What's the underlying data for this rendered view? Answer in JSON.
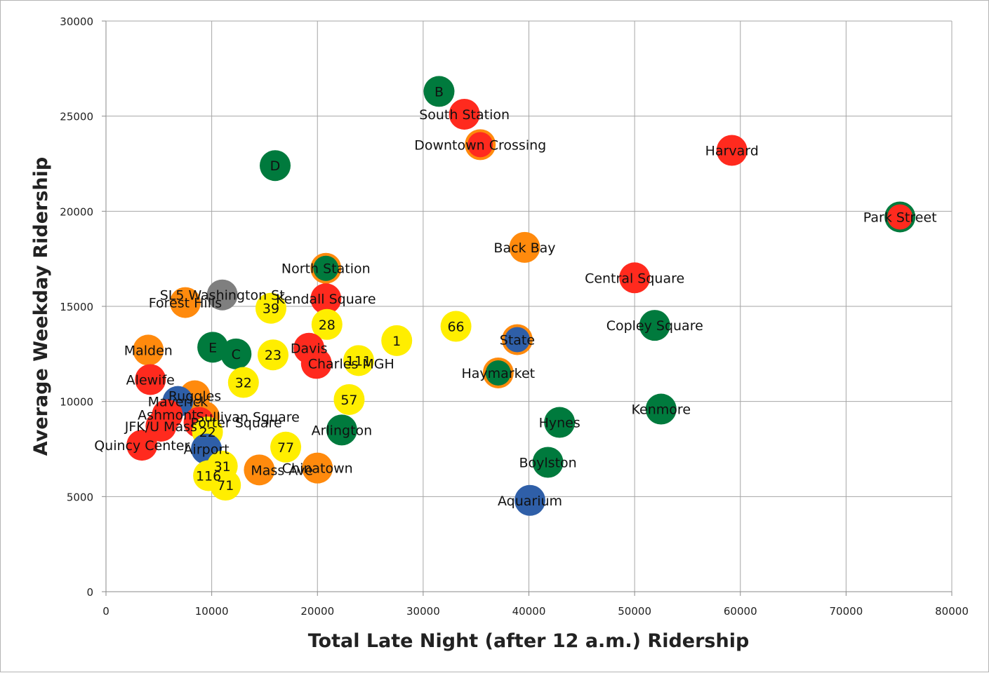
{
  "chart_data": {
    "type": "scatter",
    "xlabel": "Total Late Night (after 12 a.m.) Ridership",
    "ylabel": "Average Weekday Ridership",
    "xlim": [
      0,
      80000
    ],
    "ylim": [
      0,
      30000
    ],
    "xticks": [
      "0",
      "10000",
      "20000",
      "30000",
      "40000",
      "50000",
      "60000",
      "70000",
      "80000"
    ],
    "yticks": [
      "0",
      "5000",
      "10000",
      "15000",
      "20000",
      "25000",
      "30000"
    ],
    "grid": true,
    "colors": {
      "red": "#ff2a1e",
      "orange": "#ff8a0d",
      "green": "#007a3d",
      "blue": "#2f5fa8",
      "yellow": "#ffee00",
      "gray": "#7f7f7f"
    },
    "points": [
      {
        "label": "B",
        "x": 31500,
        "y": 26300,
        "color": "green",
        "align": "center"
      },
      {
        "label": "South Station",
        "x": 33900,
        "y": 25100,
        "color": "red",
        "align": "center"
      },
      {
        "label": "Downtown Crossing",
        "x": 35400,
        "y": 23500,
        "color": "red",
        "ring": "orange",
        "align": "center"
      },
      {
        "label": "Harvard",
        "x": 59200,
        "y": 23200,
        "color": "red",
        "align": "center"
      },
      {
        "label": "D",
        "x": 16000,
        "y": 22400,
        "color": "green",
        "align": "center"
      },
      {
        "label": "Park Street",
        "x": 75100,
        "y": 19700,
        "color": "red",
        "ring": "green",
        "align": "center"
      },
      {
        "label": "Back Bay",
        "x": 39600,
        "y": 18100,
        "color": "orange",
        "align": "center"
      },
      {
        "label": "North Station",
        "x": 20800,
        "y": 17000,
        "color": "green",
        "ring": "orange",
        "align": "center"
      },
      {
        "label": "Central Square",
        "x": 50000,
        "y": 16500,
        "color": "red",
        "align": "center"
      },
      {
        "label": "SL5 Washington St",
        "x": 11000,
        "y": 15600,
        "color": "gray",
        "align": "center"
      },
      {
        "label": "Kendall Square",
        "x": 20800,
        "y": 15400,
        "color": "red",
        "align": "center"
      },
      {
        "label": "Forest Hills",
        "x": 7500,
        "y": 15200,
        "color": "orange",
        "align": "center"
      },
      {
        "label": "39",
        "x": 15600,
        "y": 14900,
        "color": "yellow",
        "align": "center"
      },
      {
        "label": "28",
        "x": 20900,
        "y": 14050,
        "color": "yellow",
        "align": "center"
      },
      {
        "label": "66",
        "x": 33100,
        "y": 13950,
        "color": "yellow",
        "align": "center"
      },
      {
        "label": "Copley Square",
        "x": 51900,
        "y": 14000,
        "color": "green",
        "align": "center"
      },
      {
        "label": "1",
        "x": 27500,
        "y": 13200,
        "color": "yellow",
        "align": "center"
      },
      {
        "label": "State",
        "x": 38900,
        "y": 13250,
        "color": "blue",
        "ring": "orange",
        "align": "center"
      },
      {
        "label": "Malden",
        "x": 4000,
        "y": 12700,
        "color": "orange",
        "align": "center"
      },
      {
        "label": "E",
        "x": 10100,
        "y": 12850,
        "color": "green",
        "align": "center"
      },
      {
        "label": "C",
        "x": 12300,
        "y": 12500,
        "color": "green",
        "align": "center"
      },
      {
        "label": "23",
        "x": 15800,
        "y": 12450,
        "color": "yellow",
        "align": "center"
      },
      {
        "label": "Davis",
        "x": 19200,
        "y": 12800,
        "color": "red",
        "align": "center"
      },
      {
        "label": "111",
        "x": 23900,
        "y": 12150,
        "color": "yellow",
        "align": "center"
      },
      {
        "label": "Charles MGH",
        "x": 19900,
        "y": 12000,
        "color": "red",
        "align": "left"
      },
      {
        "label": "Haymarket",
        "x": 37100,
        "y": 11500,
        "color": "green",
        "ring": "orange",
        "align": "center"
      },
      {
        "label": "Alewife",
        "x": 4200,
        "y": 11150,
        "color": "red",
        "align": "center"
      },
      {
        "label": "Ruggles",
        "x": 8400,
        "y": 10300,
        "color": "orange",
        "align": "center"
      },
      {
        "label": "32",
        "x": 13000,
        "y": 11000,
        "color": "yellow",
        "align": "center"
      },
      {
        "label": "Maverick",
        "x": 6800,
        "y": 10000,
        "color": "blue",
        "align": "center"
      },
      {
        "label": "57",
        "x": 23000,
        "y": 10100,
        "color": "yellow",
        "align": "center"
      },
      {
        "label": "Kenmore",
        "x": 52500,
        "y": 9600,
        "color": "green",
        "align": "center"
      },
      {
        "label": "Sullivan Square",
        "x": 9300,
        "y": 9200,
        "color": "orange",
        "align": "left"
      },
      {
        "label": "Ashmont",
        "x": 5800,
        "y": 9300,
        "color": "red",
        "align": "center"
      },
      {
        "label": "Hynes",
        "x": 42900,
        "y": 8900,
        "color": "green",
        "align": "center"
      },
      {
        "label": "Porter Square",
        "x": 8800,
        "y": 8900,
        "color": "red",
        "align": "left"
      },
      {
        "label": "JFK/U Mass",
        "x": 5200,
        "y": 8700,
        "color": "red",
        "align": "center"
      },
      {
        "label": "22",
        "x": 9600,
        "y": 8400,
        "color": "yellow",
        "align": "left"
      },
      {
        "label": "Arlington",
        "x": 22300,
        "y": 8500,
        "color": "green",
        "align": "center"
      },
      {
        "label": "Quincy Center",
        "x": 3400,
        "y": 7700,
        "color": "red",
        "align": "center"
      },
      {
        "label": "77",
        "x": 17000,
        "y": 7600,
        "color": "yellow",
        "align": "center"
      },
      {
        "label": "Airport",
        "x": 9500,
        "y": 7500,
        "color": "blue",
        "align": "center"
      },
      {
        "label": "Boylston",
        "x": 41800,
        "y": 6800,
        "color": "green",
        "align": "center"
      },
      {
        "label": "Chinatown",
        "x": 20000,
        "y": 6500,
        "color": "orange",
        "align": "center"
      },
      {
        "label": "31",
        "x": 11000,
        "y": 6600,
        "color": "yellow",
        "align": "center"
      },
      {
        "label": "Mass Ave",
        "x": 14500,
        "y": 6400,
        "color": "orange",
        "align": "left"
      },
      {
        "label": "116",
        "x": 9700,
        "y": 6100,
        "color": "yellow",
        "align": "center"
      },
      {
        "label": "71",
        "x": 11300,
        "y": 5600,
        "color": "yellow",
        "align": "center"
      },
      {
        "label": "Aquarium",
        "x": 40100,
        "y": 4800,
        "color": "blue",
        "align": "center"
      }
    ]
  }
}
